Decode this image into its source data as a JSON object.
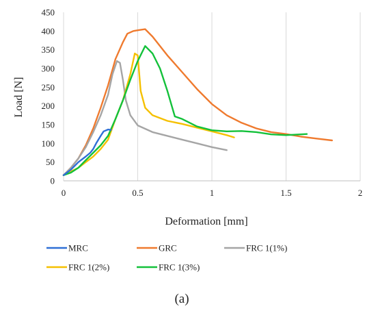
{
  "chart_data": {
    "type": "line",
    "title": "",
    "xlabel": "Deformation [mm]",
    "ylabel": "Load [N]",
    "xlim": [
      0,
      2
    ],
    "ylim": [
      0,
      450
    ],
    "xticks": [
      0,
      0.5,
      1,
      1.5,
      2
    ],
    "yticks": [
      0,
      50,
      100,
      150,
      200,
      250,
      300,
      350,
      400,
      450
    ],
    "grid": "vertical",
    "legend": "bottom",
    "caption": "(a)",
    "series": [
      {
        "name": "MRC",
        "color": "#2e6fd6",
        "x": [
          0.0,
          0.05,
          0.1,
          0.15,
          0.18,
          0.2,
          0.22,
          0.25,
          0.27,
          0.3,
          0.32
        ],
        "y": [
          15,
          30,
          50,
          65,
          75,
          85,
          100,
          120,
          132,
          137,
          136
        ]
      },
      {
        "name": "GRC",
        "color": "#ef7a2e",
        "x": [
          0.0,
          0.05,
          0.1,
          0.15,
          0.2,
          0.25,
          0.3,
          0.35,
          0.4,
          0.43,
          0.47,
          0.5,
          0.55,
          0.6,
          0.7,
          0.8,
          0.9,
          1.0,
          1.1,
          1.2,
          1.3,
          1.4,
          1.5,
          1.6,
          1.7,
          1.81
        ],
        "y": [
          15,
          35,
          60,
          95,
          140,
          195,
          255,
          325,
          370,
          393,
          400,
          402,
          405,
          385,
          335,
          290,
          245,
          205,
          175,
          155,
          140,
          130,
          125,
          118,
          113,
          108
        ]
      },
      {
        "name": "FRC 1(1%)",
        "color": "#a5a5a5",
        "x": [
          0.0,
          0.05,
          0.1,
          0.15,
          0.2,
          0.25,
          0.3,
          0.33,
          0.36,
          0.38,
          0.4,
          0.42,
          0.45,
          0.5,
          0.6,
          0.7,
          0.8,
          0.9,
          1.0,
          1.1
        ],
        "y": [
          15,
          35,
          60,
          90,
          130,
          175,
          230,
          285,
          320,
          315,
          270,
          215,
          175,
          148,
          130,
          120,
          110,
          100,
          90,
          82
        ]
      },
      {
        "name": "FRC 1(2%)",
        "color": "#f5c000",
        "x": [
          0.0,
          0.05,
          0.1,
          0.15,
          0.2,
          0.25,
          0.3,
          0.35,
          0.4,
          0.45,
          0.48,
          0.5,
          0.52,
          0.55,
          0.6,
          0.7,
          0.8,
          0.9,
          1.0,
          1.1,
          1.15
        ],
        "y": [
          15,
          25,
          35,
          50,
          65,
          85,
          110,
          165,
          215,
          285,
          340,
          335,
          240,
          195,
          175,
          160,
          152,
          142,
          132,
          122,
          116
        ]
      },
      {
        "name": "FRC 1(3%)",
        "color": "#13c13a",
        "x": [
          0.0,
          0.05,
          0.1,
          0.15,
          0.2,
          0.25,
          0.3,
          0.35,
          0.4,
          0.45,
          0.5,
          0.55,
          0.6,
          0.65,
          0.7,
          0.75,
          0.8,
          0.9,
          1.0,
          1.1,
          1.2,
          1.3,
          1.4,
          1.5,
          1.64
        ],
        "y": [
          15,
          22,
          35,
          55,
          75,
          95,
          120,
          165,
          215,
          270,
          320,
          360,
          340,
          300,
          240,
          172,
          165,
          145,
          135,
          132,
          133,
          130,
          124,
          122,
          125
        ]
      }
    ]
  }
}
